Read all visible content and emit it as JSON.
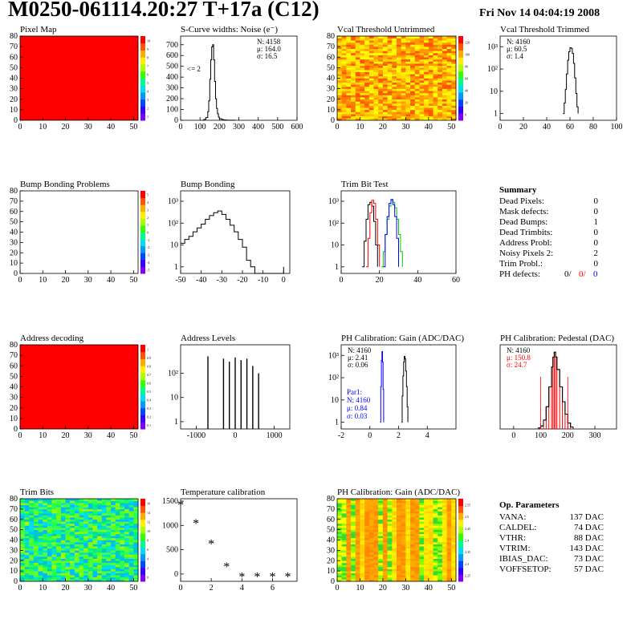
{
  "header": {
    "title": "M0250-061114.20:27 T+17a (C12)",
    "date": "Fri Nov 14 04:04:19 2008"
  },
  "colors": {
    "red": "#ff0000",
    "blue": "#0000ff",
    "green": "#00cc00",
    "black": "#000000"
  },
  "chart_data": [
    {
      "id": "pixel-map",
      "type": "heatmap",
      "title": "Pixel Map",
      "x_ticks": [
        "0",
        "10",
        "20",
        "30",
        "40",
        "50"
      ],
      "y_ticks": [
        "0",
        "10",
        "20",
        "30",
        "40",
        "50",
        "60",
        "70",
        "80"
      ],
      "xlim": [
        0,
        52
      ],
      "ylim": [
        0,
        80
      ],
      "fill": "uniform-red",
      "colorbar_ticks": [
        "1",
        "2",
        "3",
        "4",
        "5",
        "6",
        "7",
        "8",
        "9",
        "10"
      ]
    },
    {
      "id": "scurve-noise",
      "type": "line",
      "title": "S-Curve widths: Noise (e⁻)",
      "x_ticks": [
        "0",
        "100",
        "200",
        "300",
        "400",
        "500",
        "600"
      ],
      "y_ticks": [
        "0",
        "100",
        "200",
        "300",
        "400",
        "500",
        "600",
        "700"
      ],
      "xlim": [
        0,
        600
      ],
      "ylim": [
        0,
        780
      ],
      "stats": [
        "N: 4158",
        "μ: 164.0",
        "σ: 16.5"
      ],
      "annotation": "<= 2",
      "x": [
        110,
        120,
        130,
        140,
        145,
        150,
        155,
        160,
        165,
        170,
        175,
        180,
        185,
        190,
        195,
        200,
        210,
        220,
        230,
        240,
        260,
        280
      ],
      "y": [
        0,
        8,
        25,
        80,
        180,
        380,
        560,
        680,
        700,
        560,
        360,
        200,
        110,
        60,
        30,
        15,
        8,
        4,
        2,
        1,
        1,
        0
      ]
    },
    {
      "id": "vcal-untrimmed",
      "type": "heatmap",
      "title": "Vcal Threshold Untrimmed",
      "x_ticks": [
        "0",
        "10",
        "20",
        "30",
        "40",
        "50"
      ],
      "y_ticks": [
        "0",
        "10",
        "20",
        "30",
        "40",
        "50",
        "60",
        "70",
        "80"
      ],
      "xlim": [
        0,
        52
      ],
      "ylim": [
        0,
        80
      ],
      "fill": "noisy-yellow-orange",
      "colorbar_ticks": [
        "0",
        "20",
        "40",
        "60",
        "80",
        "100",
        "120"
      ]
    },
    {
      "id": "vcal-trimmed",
      "type": "line",
      "title": "Vcal Threshold Trimmed",
      "scale": "log",
      "x_ticks": [
        "0",
        "20",
        "40",
        "60",
        "80",
        "100"
      ],
      "y_ticks": [
        "1",
        "10",
        "10²",
        "10³"
      ],
      "xlim": [
        0,
        100
      ],
      "ylim": [
        0.5,
        3000
      ],
      "stats": [
        "N: 4160",
        "μ: 60.5",
        "σ: 1.4"
      ],
      "x": [
        54,
        55,
        56,
        57,
        58,
        59,
        60,
        61,
        62,
        63,
        64,
        65,
        66,
        67
      ],
      "y": [
        1,
        3,
        12,
        60,
        250,
        600,
        900,
        850,
        500,
        180,
        40,
        8,
        2,
        1
      ]
    },
    {
      "id": "bump-problems",
      "type": "heatmap",
      "title": "Bump Bonding Problems",
      "x_ticks": [
        "0",
        "10",
        "20",
        "30",
        "40",
        "50"
      ],
      "y_ticks": [
        "0",
        "10",
        "20",
        "30",
        "40",
        "50",
        "60",
        "70",
        "80"
      ],
      "xlim": [
        0,
        52
      ],
      "ylim": [
        0,
        80
      ],
      "fill": "empty",
      "colorbar_ticks": [
        "-5",
        "-4",
        "-3",
        "-2",
        "-1",
        "0",
        "1",
        "2",
        "3",
        "4",
        "5"
      ]
    },
    {
      "id": "bump-bonding",
      "type": "line",
      "title": "Bump Bonding",
      "scale": "log",
      "x_ticks": [
        "-50",
        "-40",
        "-30",
        "-20",
        "-10",
        "0"
      ],
      "y_ticks": [
        "1",
        "10",
        "10²",
        "10³"
      ],
      "xlim": [
        -50,
        3
      ],
      "ylim": [
        0.5,
        3000
      ],
      "x": [
        -50,
        -48,
        -46,
        -44,
        -42,
        -40,
        -38,
        -36,
        -34,
        -32,
        -30,
        -28,
        -26,
        -24,
        -22,
        -20,
        -18,
        -16,
        -14,
        -12,
        -10,
        -2,
        0
      ],
      "y": [
        12,
        18,
        25,
        40,
        60,
        90,
        150,
        220,
        300,
        360,
        250,
        150,
        80,
        40,
        18,
        8,
        2,
        1,
        0,
        0,
        0,
        0,
        1
      ]
    },
    {
      "id": "trim-bit-test",
      "type": "line",
      "title": "Trim Bit Test",
      "scale": "log",
      "x_ticks": [
        "0",
        "20",
        "40",
        "60"
      ],
      "y_ticks": [
        "1",
        "10",
        "10²",
        "10³"
      ],
      "xlim": [
        0,
        60
      ],
      "ylim": [
        0.5,
        3000
      ],
      "series": [
        {
          "color": "black",
          "x": [
            11,
            12,
            13,
            14,
            15,
            16,
            17,
            18,
            19
          ],
          "y": [
            1,
            15,
            150,
            700,
            900,
            600,
            120,
            10,
            1
          ]
        },
        {
          "color": "red",
          "x": [
            13,
            14,
            15,
            16,
            17,
            18,
            19,
            20
          ],
          "y": [
            1,
            20,
            300,
            1100,
            800,
            150,
            10,
            1
          ]
        },
        {
          "color": "green",
          "x": [
            21,
            22,
            23,
            24,
            25,
            26,
            27,
            28,
            29,
            30,
            31,
            32
          ],
          "y": [
            1,
            5,
            30,
            150,
            600,
            1100,
            900,
            500,
            150,
            30,
            5,
            1
          ]
        },
        {
          "color": "blue",
          "x": [
            22,
            23,
            24,
            25,
            26,
            27,
            28,
            29,
            30
          ],
          "y": [
            1,
            30,
            200,
            800,
            1200,
            700,
            200,
            20,
            1
          ]
        }
      ]
    },
    {
      "id": "address-decoding",
      "type": "heatmap",
      "title": "Address decoding",
      "x_ticks": [
        "0",
        "10",
        "20",
        "30",
        "40",
        "50"
      ],
      "y_ticks": [
        "0",
        "10",
        "20",
        "30",
        "40",
        "50",
        "60",
        "70",
        "80"
      ],
      "xlim": [
        0,
        52
      ],
      "ylim": [
        0,
        80
      ],
      "fill": "uniform-red",
      "colorbar_ticks": [
        "0.1",
        "0.2",
        "0.3",
        "0.4",
        "0.5",
        "0.6",
        "0.7",
        "0.8",
        "0.9",
        "1"
      ]
    },
    {
      "id": "address-levels",
      "type": "bar",
      "title": "Address Levels",
      "scale": "log",
      "x_ticks": [
        "-1000",
        "0",
        "1000"
      ],
      "y_ticks": [
        "1",
        "10",
        "10²"
      ],
      "xlim": [
        -1400,
        1400
      ],
      "ylim": [
        0.5,
        1500
      ],
      "spikes": [
        {
          "x": -700,
          "y": 500
        },
        {
          "x": -300,
          "y": 400
        },
        {
          "x": -150,
          "y": 300
        },
        {
          "x": 0,
          "y": 450
        },
        {
          "x": 150,
          "y": 350
        },
        {
          "x": 300,
          "y": 400
        },
        {
          "x": 450,
          "y": 200
        },
        {
          "x": 600,
          "y": 100
        }
      ]
    },
    {
      "id": "ph-gain",
      "type": "line",
      "title": "PH Calibration: Gain (ADC/DAC)",
      "scale": "log",
      "x_ticks": [
        "-2",
        "0",
        "2",
        "4"
      ],
      "y_ticks": [
        "1",
        "10",
        "10²",
        "10³"
      ],
      "xlim": [
        -2,
        6
      ],
      "ylim": [
        0.5,
        3000
      ],
      "stats": [
        "N: 4160",
        "μ: 2.41",
        "σ: 0.06"
      ],
      "stats2": [
        "Par1:",
        "N: 4160",
        "μ: 0.84",
        "σ: 0.03"
      ],
      "series": [
        {
          "color": "blue",
          "x": [
            0.72,
            0.76,
            0.8,
            0.84,
            0.88,
            0.92,
            0.96
          ],
          "y": [
            1,
            40,
            600,
            1500,
            500,
            30,
            1
          ]
        },
        {
          "color": "black",
          "x": [
            2.2,
            2.25,
            2.3,
            2.35,
            2.4,
            2.45,
            2.5,
            2.55,
            2.6,
            2.65
          ],
          "y": [
            1,
            15,
            120,
            500,
            900,
            700,
            200,
            40,
            5,
            1
          ]
        }
      ]
    },
    {
      "id": "ph-pedestal",
      "type": "line",
      "title": "PH Calibration: Pedestal (DAC)",
      "x_ticks": [
        "0",
        "100",
        "200",
        "300"
      ],
      "y_ticks": [],
      "xlim": [
        -50,
        380
      ],
      "ylim": [
        0,
        170
      ],
      "stats": [
        "N: 4160",
        "μ: 150.8",
        "σ: 24.7"
      ],
      "x": [
        90,
        100,
        110,
        120,
        130,
        140,
        145,
        150,
        155,
        160,
        170,
        180,
        190,
        200,
        210,
        220
      ],
      "y": [
        2,
        6,
        18,
        45,
        85,
        125,
        145,
        155,
        145,
        120,
        85,
        55,
        30,
        12,
        4,
        1
      ]
    },
    {
      "id": "trim-bits",
      "type": "heatmap",
      "title": "Trim Bits",
      "x_ticks": [
        "0",
        "10",
        "20",
        "30",
        "40",
        "50"
      ],
      "y_ticks": [
        "0",
        "10",
        "20",
        "30",
        "40",
        "50",
        "60",
        "70",
        "80"
      ],
      "xlim": [
        0,
        52
      ],
      "ylim": [
        0,
        80
      ],
      "fill": "noisy-green-cyan",
      "colorbar_ticks": [
        "0",
        "2",
        "4",
        "6",
        "8",
        "10",
        "12",
        "14",
        "16"
      ]
    },
    {
      "id": "temperature-calibration",
      "type": "scatter",
      "title": "Temperature calibration",
      "x_ticks": [
        "0",
        "2",
        "4",
        "6"
      ],
      "y_ticks": [
        "0",
        "500",
        "1000",
        "1500"
      ],
      "xlim": [
        0,
        7.6
      ],
      "ylim": [
        -150,
        1550
      ],
      "x": [
        0,
        1,
        2,
        3,
        4,
        5,
        6,
        7
      ],
      "y": [
        1420,
        1040,
        620,
        150,
        -60,
        -60,
        -60,
        -60
      ]
    },
    {
      "id": "ph-gain-map",
      "type": "heatmap",
      "title": "PH Calibration: Gain (ADC/DAC)",
      "x_ticks": [
        "0",
        "10",
        "20",
        "30",
        "40",
        "50"
      ],
      "y_ticks": [
        "0",
        "10",
        "20",
        "30",
        "40",
        "50",
        "60",
        "70",
        "80"
      ],
      "xlim": [
        0,
        52
      ],
      "ylim": [
        0,
        80
      ],
      "fill": "striped-yellow-orange",
      "colorbar_ticks": [
        "2.25",
        "2.3",
        "2.35",
        "2.4",
        "2.45",
        "2.5",
        "2.55"
      ]
    }
  ],
  "summary": {
    "heading": "Summary",
    "rows": [
      {
        "label": "Dead Pixels:",
        "value": "0"
      },
      {
        "label": "Mask defects:",
        "value": "0"
      },
      {
        "label": "Dead Bumps:",
        "value": "1"
      },
      {
        "label": "Dead Trimbits:",
        "value": "0"
      },
      {
        "label": "Address Probl:",
        "value": "0"
      },
      {
        "label": "Noisy Pixels 2:",
        "value": "2"
      },
      {
        "label": "Trim Probl.:",
        "value": "0"
      }
    ],
    "ph_defects": {
      "label": "PH defects:",
      "v1": "0/",
      "v2": "0/",
      "v3": "0"
    }
  },
  "op_parameters": {
    "heading": "Op. Parameters",
    "rows": [
      {
        "label": "VANA:",
        "value": "137 DAC"
      },
      {
        "label": "CALDEL:",
        "value": "74 DAC"
      },
      {
        "label": "VTHR:",
        "value": "88 DAC"
      },
      {
        "label": "VTRIM:",
        "value": "143 DAC"
      },
      {
        "label": "IBIAS_DAC:",
        "value": "73 DAC"
      },
      {
        "label": "VOFFSETOP:",
        "value": "57 DAC"
      }
    ]
  }
}
